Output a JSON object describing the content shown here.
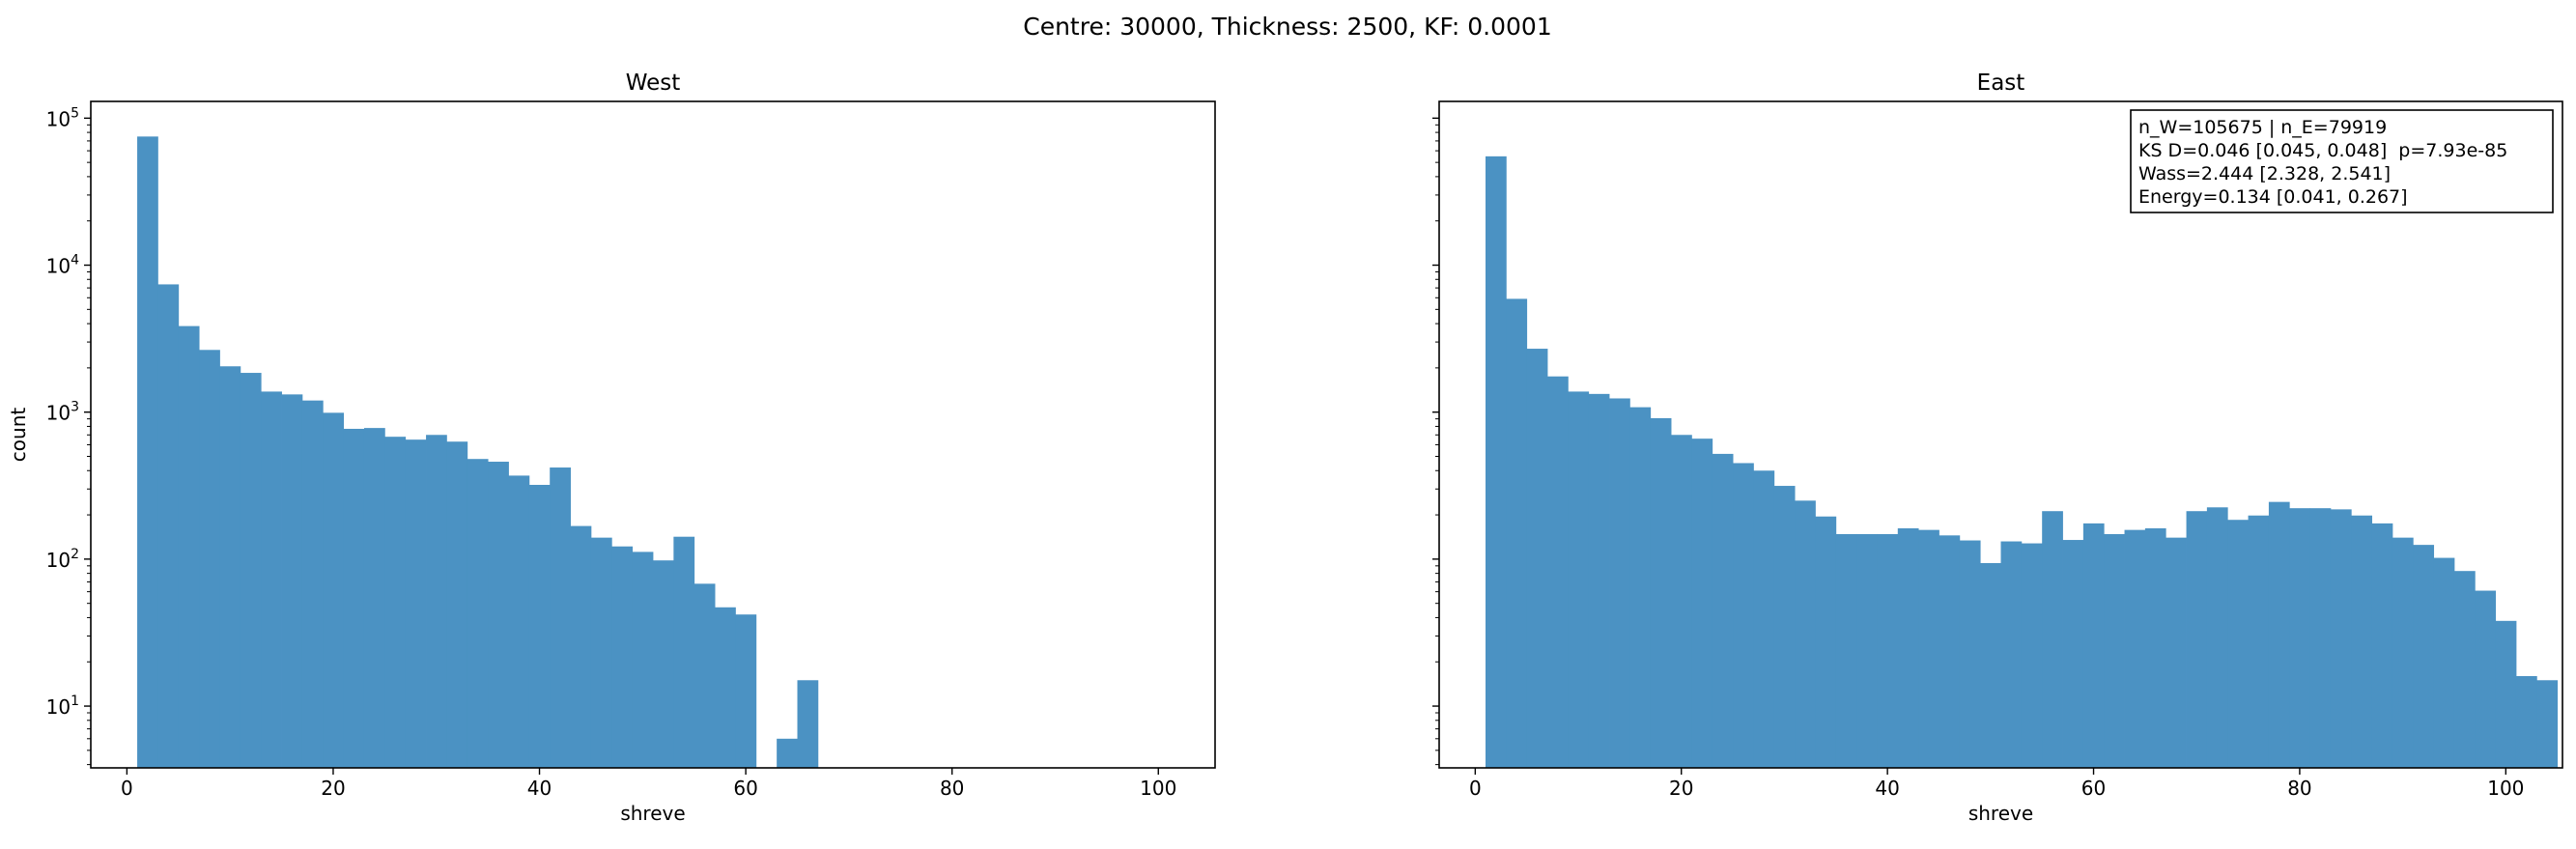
{
  "figure": {
    "suptitle": "Centre: 30000, Thickness: 2500, KF: 0.0001"
  },
  "colors": {
    "bar": "#4b92c3",
    "axis": "#000000",
    "background": "#ffffff"
  },
  "chart_data": [
    {
      "type": "bar",
      "title": "West",
      "xlabel": "shreve",
      "ylabel": "count",
      "yscale": "log",
      "xlim": [
        -3.5,
        105.5
      ],
      "ylim": [
        3.8,
        130000
      ],
      "xticks": [
        0,
        20,
        40,
        60,
        80,
        100
      ],
      "yticks": [
        10,
        100,
        1000,
        10000,
        100000
      ],
      "ytick_labels": [
        {
          "base": "10",
          "exp": "1"
        },
        {
          "base": "10",
          "exp": "2"
        },
        {
          "base": "10",
          "exp": "3"
        },
        {
          "base": "10",
          "exp": "4"
        },
        {
          "base": "10",
          "exp": "5"
        }
      ],
      "bin_start": 1,
      "bin_width": 2,
      "values": [
        75000,
        7400,
        3850,
        2650,
        2050,
        1850,
        1380,
        1320,
        1200,
        990,
        770,
        780,
        680,
        650,
        700,
        630,
        480,
        460,
        370,
        320,
        420,
        168,
        140,
        122,
        112,
        98,
        142,
        68,
        47,
        42,
        0,
        6,
        15,
        0,
        0,
        0,
        0,
        0,
        0,
        0,
        0,
        0,
        0,
        0,
        0,
        0,
        0,
        0,
        0,
        0
      ]
    },
    {
      "type": "bar",
      "title": "East",
      "xlabel": "shreve",
      "ylabel": "",
      "yscale": "log",
      "xlim": [
        -3.5,
        105.5
      ],
      "ylim": [
        3.8,
        130000
      ],
      "xticks": [
        0,
        20,
        40,
        60,
        80,
        100
      ],
      "yticks": [
        10,
        100,
        1000,
        10000,
        100000
      ],
      "bin_start": 1,
      "bin_width": 2,
      "values": [
        55000,
        5900,
        2700,
        1750,
        1380,
        1330,
        1240,
        1080,
        910,
        700,
        660,
        520,
        450,
        400,
        315,
        250,
        195,
        148,
        148,
        148,
        162,
        158,
        145,
        134,
        94,
        132,
        128,
        212,
        135,
        175,
        148,
        158,
        162,
        140,
        212,
        225,
        185,
        198,
        245,
        222,
        222,
        218,
        198,
        175,
        140,
        125,
        102,
        83,
        61,
        38,
        16,
        15
      ],
      "annotation": [
        "n_W=105675 | n_E=79919",
        "KS D=0.046 [0.045, 0.048]  p=7.93e-85",
        "Wass=2.444 [2.328, 2.541]",
        "Energy=0.134 [0.041, 0.267]"
      ]
    }
  ]
}
